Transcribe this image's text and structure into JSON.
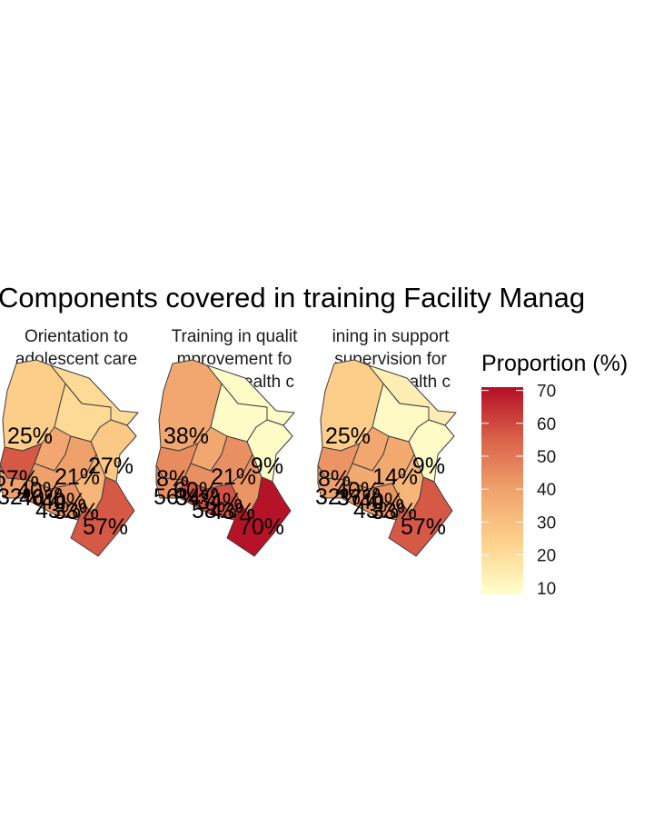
{
  "title": "Components covered in training Facility Manag",
  "colors": {
    "scale_low": "#ffffcc",
    "scale_mid_low": "#fed28c",
    "scale_mid": "#f0a36c",
    "scale_mid_high": "#d96249",
    "scale_high": "#b40e26",
    "border": "#3d3d3d"
  },
  "legend": {
    "title": "Proportion (%)",
    "ticks": [
      "70",
      "60",
      "50",
      "40",
      "30",
      "20",
      "10"
    ],
    "min": 8,
    "max": 71
  },
  "panels": [
    {
      "title_lines": [
        "Orientation to",
        "adolescent care"
      ],
      "values": {
        "northwest": 25,
        "north": 21,
        "northeast": 21,
        "east": 27,
        "west1": 57,
        "west2": 38,
        "west3": 40,
        "central": 40,
        "south": 43,
        "southwest": 33,
        "coast": 57
      },
      "labels": [
        "25%",
        "21%",
        "27%",
        "57%",
        "67%",
        "32%",
        "40%",
        "40%",
        "43%",
        "33%",
        "40%"
      ]
    },
    {
      "title_lines": [
        "Training in qualit",
        "mprovement fo",
        "lescent health c"
      ],
      "values": {
        "northwest": 38,
        "north": 9,
        "northeast": 9,
        "east": 9,
        "west1": 45,
        "west2": 38,
        "west3": 44,
        "central": 44,
        "south": 58,
        "southwest": 43,
        "coast": 70
      },
      "labels": [
        "38%",
        "21%",
        "9%",
        "70%",
        "8%",
        "56%",
        "34%",
        "34%",
        "58%",
        "43%",
        "60%"
      ]
    },
    {
      "title_lines": [
        "ining in support",
        "supervision for",
        "lescent health c"
      ],
      "values": {
        "northwest": 25,
        "north": 10,
        "northeast": 14,
        "east": 9,
        "west1": 43,
        "west2": 38,
        "west3": 40,
        "central": 37,
        "south": 43,
        "southwest": 33,
        "coast": 57
      },
      "labels": [
        "25%",
        "14%",
        "9%",
        "57%",
        "8%",
        "32%",
        "37%",
        "40%",
        "43%",
        "33%",
        "40%"
      ]
    }
  ]
}
